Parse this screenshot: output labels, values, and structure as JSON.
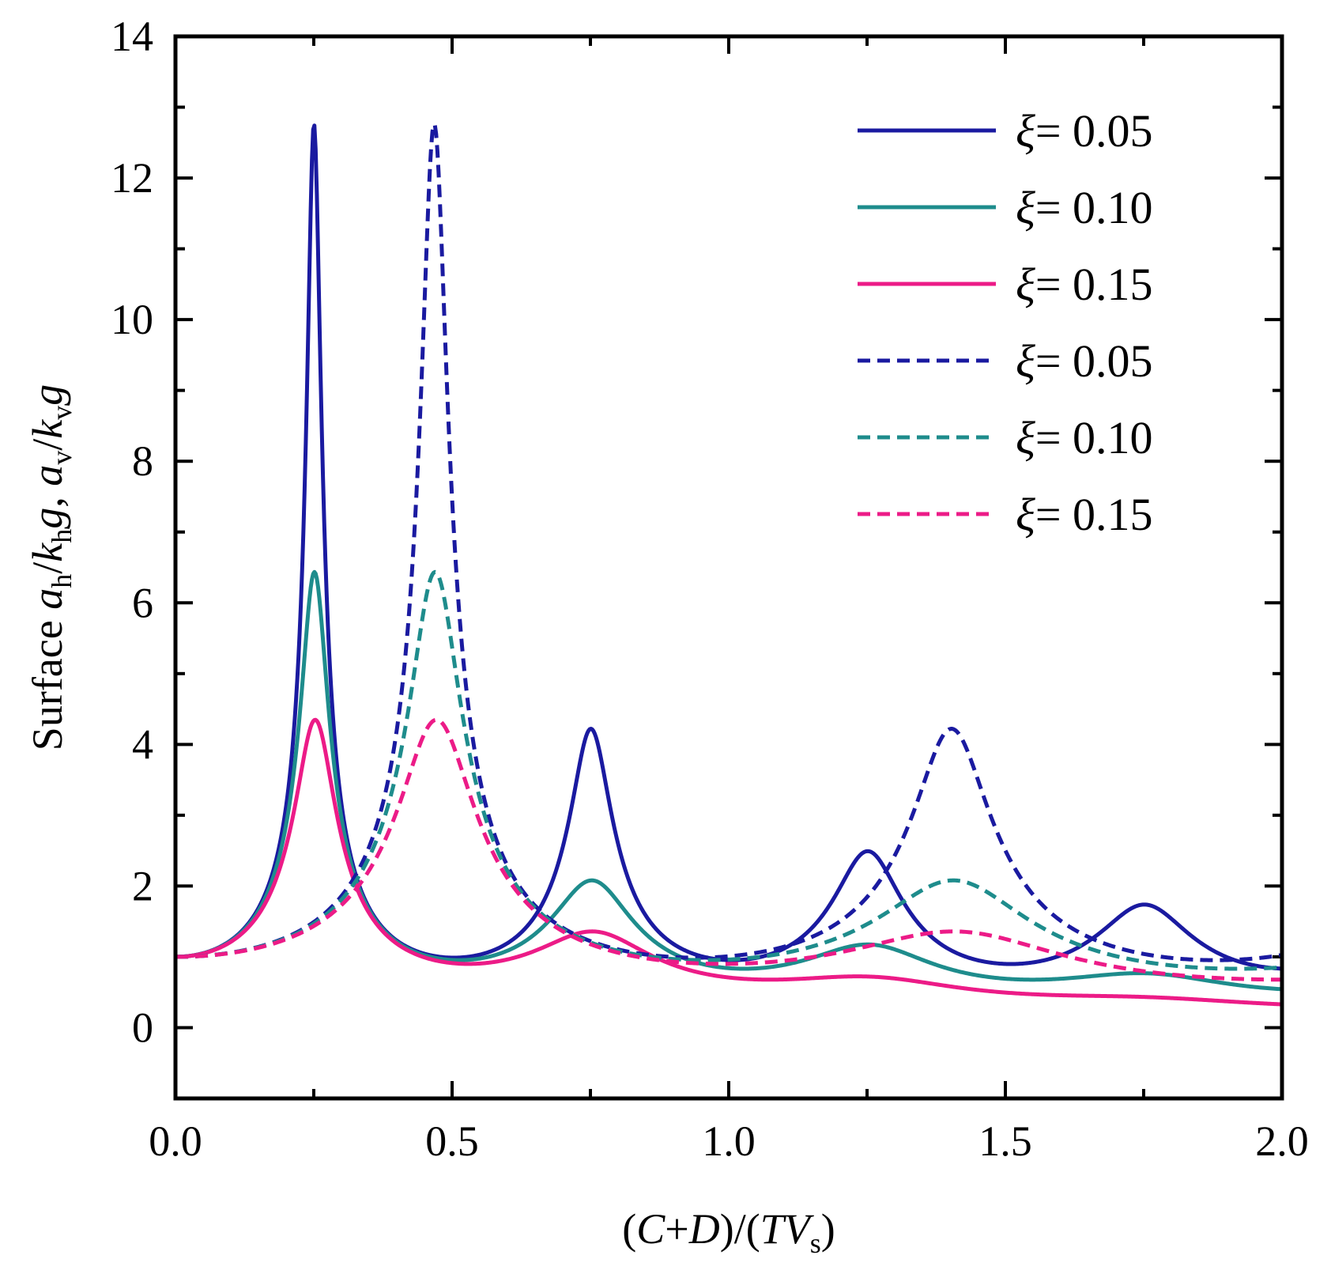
{
  "chart_data": {
    "type": "line",
    "xlabel": "(C+D)/(TVs)",
    "xlabel_parts": {
      "open": "(",
      "c": "C",
      "plus": "+",
      "d": "D",
      "mid": ")/(",
      "t": "T",
      "v": "V",
      "sub": "s",
      "close": ")"
    },
    "ylabel": "Surface ah/khg, av/kvg",
    "ylabel_parts": {
      "prefix": "Surface ",
      "a1": "a",
      "s1": "h",
      "slash1": "/",
      "k1": "k",
      "s2": "h",
      "g1": "g",
      "comma": ", ",
      "a2": "a",
      "s3": "v",
      "slash2": "/",
      "k2": "k",
      "s4": "v",
      "g2": "g"
    },
    "xlim": [
      0,
      2
    ],
    "ylim": [
      -1,
      14
    ],
    "xticks": [
      "0.0",
      "0.5",
      "1.0",
      "1.5",
      "2.0"
    ],
    "xtick_values": [
      0,
      0.5,
      1.0,
      1.5,
      2.0
    ],
    "yticks": [
      "0",
      "2",
      "4",
      "6",
      "8",
      "10",
      "12",
      "14"
    ],
    "ytick_values": [
      0,
      2,
      4,
      6,
      8,
      10,
      12,
      14
    ],
    "legend_position": "top-right",
    "colors": {
      "navy": "#1a1aa0",
      "teal": "#1e8c8c",
      "pink": "#ec1b87"
    },
    "series": [
      {
        "name": "ξ = 0.05",
        "symbol": "ξ",
        "value": "= 0.05",
        "color": "#1a1aa0",
        "dash": "solid",
        "kind": "horizontal",
        "damping": 0.05
      },
      {
        "name": "ξ = 0.10",
        "symbol": "ξ",
        "value": "= 0.10",
        "color": "#1e8c8c",
        "dash": "solid",
        "kind": "horizontal",
        "damping": 0.1
      },
      {
        "name": "ξ = 0.15",
        "symbol": "ξ",
        "value": "= 0.15",
        "color": "#ec1b87",
        "dash": "solid",
        "kind": "horizontal",
        "damping": 0.15
      },
      {
        "name": "ξ = 0.05",
        "symbol": "ξ",
        "value": "= 0.05",
        "color": "#1a1aa0",
        "dash": "dashed",
        "kind": "vertical",
        "damping": 0.05
      },
      {
        "name": "ξ = 0.10",
        "symbol": "ξ",
        "value": "= 0.10",
        "color": "#1e8c8c",
        "dash": "dashed",
        "kind": "vertical",
        "damping": 0.1
      },
      {
        "name": "ξ = 0.15",
        "symbol": "ξ",
        "value": "= 0.15",
        "color": "#ec1b87",
        "dash": "dashed",
        "kind": "vertical",
        "damping": 0.15
      }
    ],
    "peaks": {
      "horizontal_x": [
        0.25,
        0.75,
        1.25,
        1.75
      ],
      "vertical_x": [
        0.467,
        1.4
      ],
      "horizontal_peak_values": {
        "0.05": [
          12.75,
          4.2,
          2.5,
          1.72
        ],
        "0.10": [
          6.4,
          2.05,
          1.2,
          0.8
        ],
        "0.15": [
          4.3,
          1.35,
          0.72,
          0.45
        ]
      },
      "vertical_peak_values": {
        "0.05": [
          12.7,
          4.2
        ],
        "0.10": [
          6.4,
          2.1
        ],
        "0.15": [
          4.3,
          1.38
        ]
      }
    }
  }
}
